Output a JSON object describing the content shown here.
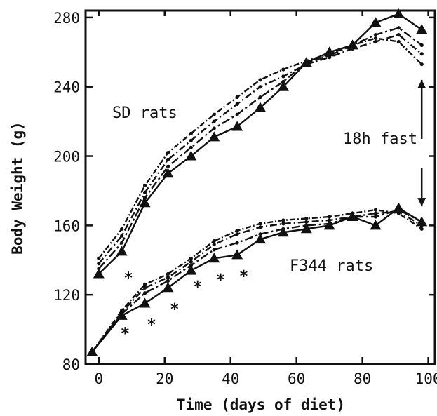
{
  "chart_data": {
    "type": "line",
    "xlabel": "Time (days of diet)",
    "ylabel": "Body Weight (g)",
    "xlim": [
      -4,
      102
    ],
    "ylim": [
      80,
      284
    ],
    "xticks": [
      0,
      20,
      40,
      60,
      80,
      100
    ],
    "yticks": [
      80,
      120,
      160,
      200,
      240,
      280
    ],
    "grid": false,
    "legend": "none",
    "annotations": {
      "sd_label": "SD rats",
      "f344_label": "F344 rats",
      "fast_label": "18h fast",
      "significance_marker": "*"
    },
    "significance_markers": [
      {
        "x": 9,
        "y": 130
      },
      {
        "x": 8,
        "y": 98
      },
      {
        "x": 16,
        "y": 103
      },
      {
        "x": 23,
        "y": 112
      },
      {
        "x": 30,
        "y": 125
      },
      {
        "x": 37,
        "y": 129
      },
      {
        "x": 44,
        "y": 131
      }
    ],
    "fast_arrow": {
      "x": 98,
      "up_from": 210,
      "up_to": 244,
      "down_from": 193,
      "down_to": 171
    },
    "series": [
      {
        "group": "SD",
        "marker": "triangle",
        "x": [
          0,
          7,
          14,
          21,
          28,
          35,
          42,
          49,
          56,
          63,
          70,
          77,
          84,
          91,
          98
        ],
        "y": [
          132,
          145,
          173,
          190,
          200,
          211,
          217,
          228,
          240,
          254,
          260,
          264,
          277,
          282,
          273
        ]
      },
      {
        "group": "SD",
        "marker": "none",
        "x": [
          0,
          7,
          14,
          21,
          28,
          35,
          42,
          49,
          56,
          63,
          70,
          77,
          84,
          91,
          98
        ],
        "y": [
          135,
          150,
          176,
          194,
          205,
          216,
          224,
          234,
          243,
          254,
          258,
          264,
          270,
          274,
          264
        ]
      },
      {
        "group": "SD",
        "marker": "none",
        "x": [
          0,
          7,
          14,
          21,
          28,
          35,
          42,
          49,
          56,
          63,
          70,
          77,
          84,
          91,
          98
        ],
        "y": [
          138,
          154,
          179,
          198,
          209,
          220,
          230,
          240,
          246,
          253,
          257,
          262,
          266,
          270,
          259
        ]
      },
      {
        "group": "SD",
        "marker": "none",
        "x": [
          0,
          7,
          14,
          21,
          28,
          35,
          42,
          49,
          56,
          63,
          70,
          77,
          84,
          91,
          98
        ],
        "y": [
          141,
          158,
          183,
          202,
          213,
          224,
          234,
          244,
          250,
          255,
          259,
          264,
          268,
          266,
          253
        ]
      },
      {
        "group": "F344",
        "marker": "triangle",
        "x": [
          -2,
          7,
          14,
          21,
          28,
          35,
          42,
          49,
          56,
          63,
          70,
          77,
          84,
          91,
          98
        ],
        "y": [
          87,
          108,
          115,
          124,
          134,
          141,
          143,
          152,
          156,
          158,
          160,
          165,
          160,
          170,
          162
        ]
      },
      {
        "group": "F344",
        "marker": "none",
        "x": [
          -2,
          7,
          14,
          21,
          28,
          35,
          42,
          49,
          56,
          63,
          70,
          77,
          84,
          91,
          98
        ],
        "y": [
          87,
          109,
          121,
          128,
          137,
          146,
          150,
          155,
          158,
          160,
          161,
          165,
          165,
          169,
          162
        ]
      },
      {
        "group": "F344",
        "marker": "none",
        "x": [
          -2,
          7,
          14,
          21,
          28,
          35,
          42,
          49,
          56,
          63,
          70,
          77,
          84,
          91,
          98
        ],
        "y": [
          87,
          110,
          124,
          130,
          139,
          149,
          155,
          159,
          161,
          162,
          163,
          165,
          167,
          168,
          160
        ]
      },
      {
        "group": "F344",
        "marker": "none",
        "x": [
          -2,
          7,
          14,
          21,
          28,
          35,
          42,
          49,
          56,
          63,
          70,
          77,
          84,
          91,
          98
        ],
        "y": [
          87,
          111,
          126,
          132,
          141,
          151,
          157,
          161,
          163,
          164,
          165,
          167,
          169,
          167,
          158
        ]
      }
    ]
  },
  "style": {
    "ink": "#111111",
    "background": "#ffffff"
  }
}
